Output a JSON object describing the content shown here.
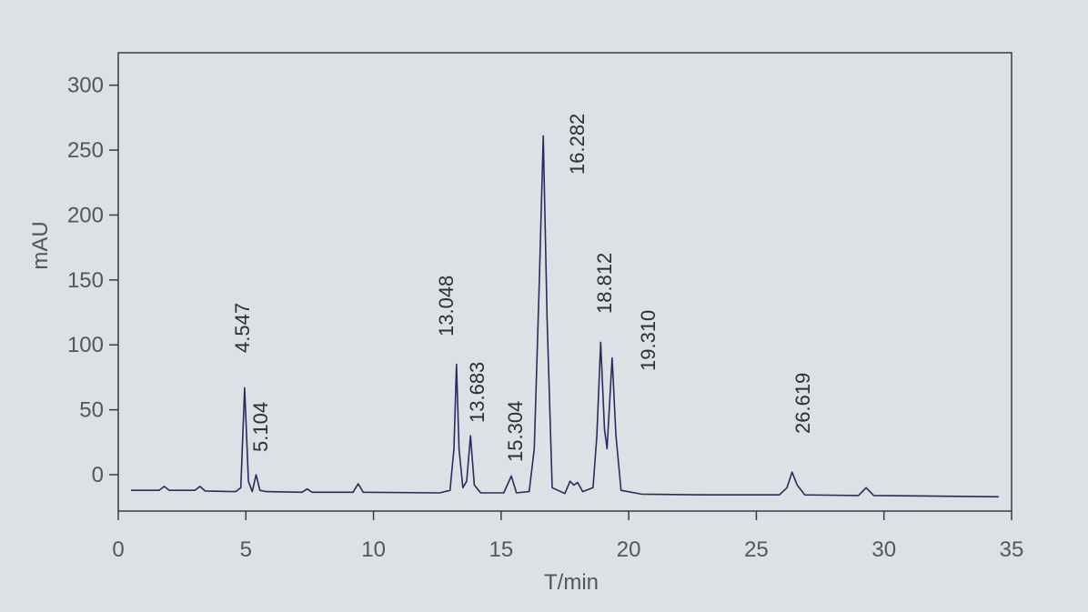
{
  "chart_data": {
    "type": "line",
    "xlabel": "T/min",
    "ylabel": "mAU",
    "x": [
      0.5,
      1.6,
      1.8,
      2.0,
      3.0,
      3.2,
      3.4,
      4.6,
      4.8,
      4.95,
      5.1,
      5.25,
      5.4,
      5.55,
      5.8,
      7.2,
      7.4,
      7.6,
      9.2,
      9.4,
      9.6,
      12.6,
      13.0,
      13.15,
      13.25,
      13.35,
      13.5,
      13.65,
      13.8,
      13.95,
      14.2,
      15.1,
      15.4,
      15.6,
      16.1,
      16.3,
      16.5,
      16.65,
      16.8,
      17.0,
      17.5,
      17.7,
      17.85,
      18.0,
      18.2,
      18.6,
      18.75,
      18.9,
      19.05,
      19.15,
      19.35,
      19.5,
      19.7,
      20.5,
      23.0,
      25.9,
      26.2,
      26.4,
      26.6,
      26.9,
      29.0,
      29.3,
      29.6,
      34.5
    ],
    "values": [
      -12,
      -12,
      -9,
      -12,
      -12,
      -9,
      -12.5,
      -13,
      -10,
      67,
      -5,
      -13,
      0,
      -12,
      -13,
      -13.5,
      -11,
      -13.5,
      -13.5,
      -7,
      -13.5,
      -14,
      -12,
      20,
      85,
      20,
      -10,
      -5,
      30,
      -8,
      -14,
      -14,
      -1,
      -14,
      -13,
      20,
      150,
      261,
      120,
      -10,
      -14.5,
      -5,
      -8,
      -6,
      -13,
      -10,
      30,
      102,
      35,
      20,
      90,
      30,
      -12,
      -15,
      -15.5,
      -15.5,
      -10,
      2,
      -8,
      -15.5,
      -16,
      -10,
      -16,
      -17
    ],
    "color": "#262d5c",
    "xlim": [
      0,
      35
    ],
    "xticks": [
      0,
      5,
      10,
      15,
      20,
      25,
      30,
      35
    ],
    "ylim": [
      -28,
      325
    ],
    "yticks": [
      0,
      50,
      100,
      150,
      200,
      250,
      300
    ],
    "annotations": [
      "4.547",
      "5.104",
      "13.048",
      "13.683",
      "15.304",
      "16.282",
      "18.812",
      "19.310",
      "26.619"
    ]
  }
}
